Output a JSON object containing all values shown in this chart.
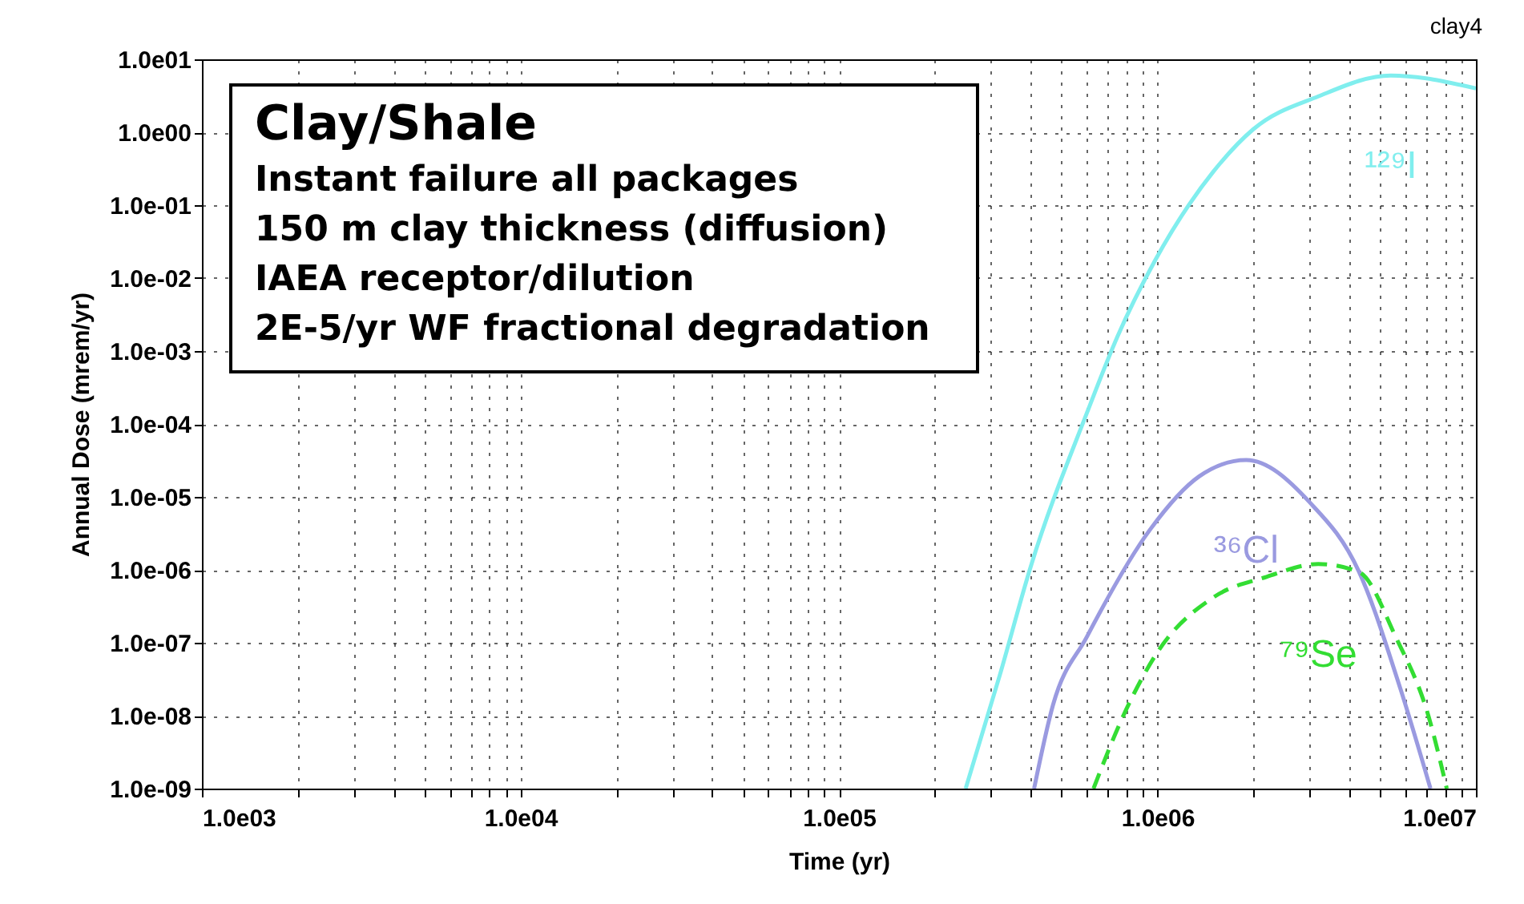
{
  "chart_data": {
    "type": "line",
    "title": "Clay/Shale",
    "xlabel": "Time (yr)",
    "ylabel": "Annual Dose (mrem/yr)",
    "annotations": [
      "clay4",
      "Instant failure all packages",
      "150 m clay thickness (diffusion)",
      "IAEA receptor/dilution",
      "2E-5/yr WF fractional degradation"
    ],
    "log": "xy",
    "grid": true,
    "legend": false,
    "xlim": [
      1000,
      10000000
    ],
    "ylim": [
      1e-09,
      10
    ],
    "xticks": [
      {
        "value": 1000,
        "label": "1.0e03"
      },
      {
        "value": 2000,
        "label": null
      },
      {
        "value": 3000,
        "label": null
      },
      {
        "value": 4000,
        "label": null
      },
      {
        "value": 5000,
        "label": null
      },
      {
        "value": 6000,
        "label": null
      },
      {
        "value": 7000,
        "label": null
      },
      {
        "value": 8000,
        "label": null
      },
      {
        "value": 9000,
        "label": null
      },
      {
        "value": 10000,
        "label": "1.0e04"
      },
      {
        "value": 20000,
        "label": null
      },
      {
        "value": 30000,
        "label": null
      },
      {
        "value": 40000,
        "label": null
      },
      {
        "value": 50000,
        "label": null
      },
      {
        "value": 60000,
        "label": null
      },
      {
        "value": 70000,
        "label": null
      },
      {
        "value": 80000,
        "label": null
      },
      {
        "value": 90000,
        "label": null
      },
      {
        "value": 100000,
        "label": "1.0e05"
      },
      {
        "value": 200000,
        "label": null
      },
      {
        "value": 300000,
        "label": null
      },
      {
        "value": 400000,
        "label": null
      },
      {
        "value": 500000,
        "label": null
      },
      {
        "value": 600000,
        "label": null
      },
      {
        "value": 700000,
        "label": null
      },
      {
        "value": 800000,
        "label": null
      },
      {
        "value": 900000,
        "label": null
      },
      {
        "value": 1000000,
        "label": "1.0e06"
      },
      {
        "value": 2000000,
        "label": null
      },
      {
        "value": 3000000,
        "label": null
      },
      {
        "value": 4000000,
        "label": null
      },
      {
        "value": 5000000,
        "label": null
      },
      {
        "value": 6000000,
        "label": null
      },
      {
        "value": 7000000,
        "label": null
      },
      {
        "value": 8000000,
        "label": null
      },
      {
        "value": 9000000,
        "label": null
      },
      {
        "value": 10000000,
        "label": "1.0e07"
      }
    ],
    "yticks": [
      {
        "value": 1e-09,
        "label": "1.0e-09"
      },
      {
        "value": 1e-08,
        "label": "1.0e-08"
      },
      {
        "value": 1e-07,
        "label": "1.0e-07"
      },
      {
        "value": 1e-06,
        "label": "1.0e-06"
      },
      {
        "value": 1e-05,
        "label": "1.0e-05"
      },
      {
        "value": 0.0001,
        "label": "1.0e-04"
      },
      {
        "value": 0.001,
        "label": "1.0e-03"
      },
      {
        "value": 0.01,
        "label": "1.0e-02"
      },
      {
        "value": 0.1,
        "label": "1.0e-01"
      },
      {
        "value": 1,
        "label": "1.0e00"
      },
      {
        "value": 10,
        "label": "1.0e01"
      }
    ],
    "series": [
      {
        "name": "¹²⁹I",
        "color": "#80eeee",
        "line_style": "solid",
        "x": [
          250000,
          320000,
          400000,
          600000,
          750000,
          980000,
          1500000,
          2000000,
          3200000,
          5400000,
          10000000
        ],
        "values": [
          1e-09,
          3.6e-08,
          1.1e-06,
          0.00014,
          0.0016,
          0.017,
          0.29,
          1.1,
          3.1,
          6.0,
          4.0
        ]
      },
      {
        "name": "³⁶Cl",
        "color": "#9a9ae0",
        "line_style": "solid",
        "x": [
          410000,
          470000,
          600000,
          950000,
          1350000,
          1900000,
          3000000,
          4300000,
          5800000,
          7200000
        ],
        "values": [
          1e-09,
          1.4e-08,
          1.2e-07,
          3.6e-06,
          1.9e-05,
          3.2e-05,
          8.5e-06,
          9.3e-07,
          2.3e-08,
          1e-09
        ]
      },
      {
        "name": "⁷⁹Se",
        "color": "#33dd33",
        "line_style": "dashed",
        "x": [
          630000,
          780000,
          1000000,
          1500000,
          2200000,
          3200000,
          4300000,
          5600000,
          7100000,
          8100000
        ],
        "values": [
          1e-09,
          9.8e-09,
          7.4e-08,
          4.2e-07,
          8e-07,
          1.2e-06,
          9.3e-07,
          1.2e-07,
          9.8e-09,
          1e-09
        ]
      }
    ]
  }
}
